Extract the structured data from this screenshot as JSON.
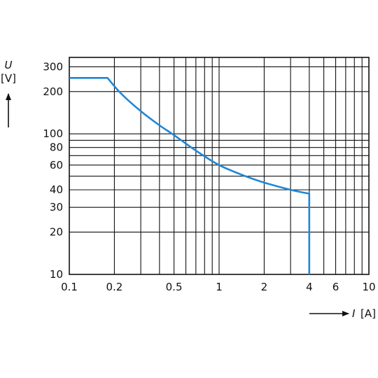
{
  "chart_data": {
    "type": "line",
    "x_scale": "log",
    "y_scale": "log",
    "xlim": [
      0.1,
      10
    ],
    "ylim": [
      10,
      350
    ],
    "grid": true,
    "x_ticks": [
      {
        "value": 0.1,
        "label": "0.1"
      },
      {
        "value": 0.2,
        "label": "0.2"
      },
      {
        "value": 0.5,
        "label": "0.5"
      },
      {
        "value": 1,
        "label": "1"
      },
      {
        "value": 2,
        "label": "2"
      },
      {
        "value": 4,
        "label": "4"
      },
      {
        "value": 6,
        "label": "6"
      },
      {
        "value": 10,
        "label": "10"
      }
    ],
    "y_ticks": [
      {
        "value": 10,
        "label": "10"
      },
      {
        "value": 20,
        "label": "20"
      },
      {
        "value": 30,
        "label": "30"
      },
      {
        "value": 40,
        "label": "40"
      },
      {
        "value": 60,
        "label": "60"
      },
      {
        "value": 80,
        "label": "80"
      },
      {
        "value": 100,
        "label": "100"
      },
      {
        "value": 200,
        "label": "200"
      },
      {
        "value": 300,
        "label": "300"
      }
    ],
    "y_axis": {
      "symbol": "U",
      "unit": "[V]"
    },
    "x_axis": {
      "symbol": "I",
      "unit": "[A]"
    },
    "series": [
      {
        "color": "#1f87d6",
        "points": [
          {
            "x": 0.1,
            "y": 250
          },
          {
            "x": 0.18,
            "y": 250
          },
          {
            "x": 0.22,
            "y": 195
          },
          {
            "x": 0.3,
            "y": 145
          },
          {
            "x": 0.4,
            "y": 115
          },
          {
            "x": 0.5,
            "y": 98
          },
          {
            "x": 0.7,
            "y": 76
          },
          {
            "x": 1,
            "y": 60
          },
          {
            "x": 1.5,
            "y": 50
          },
          {
            "x": 2,
            "y": 45
          },
          {
            "x": 3,
            "y": 40
          },
          {
            "x": 4,
            "y": 37.5
          },
          {
            "x": 4,
            "y": 10
          }
        ]
      }
    ]
  }
}
